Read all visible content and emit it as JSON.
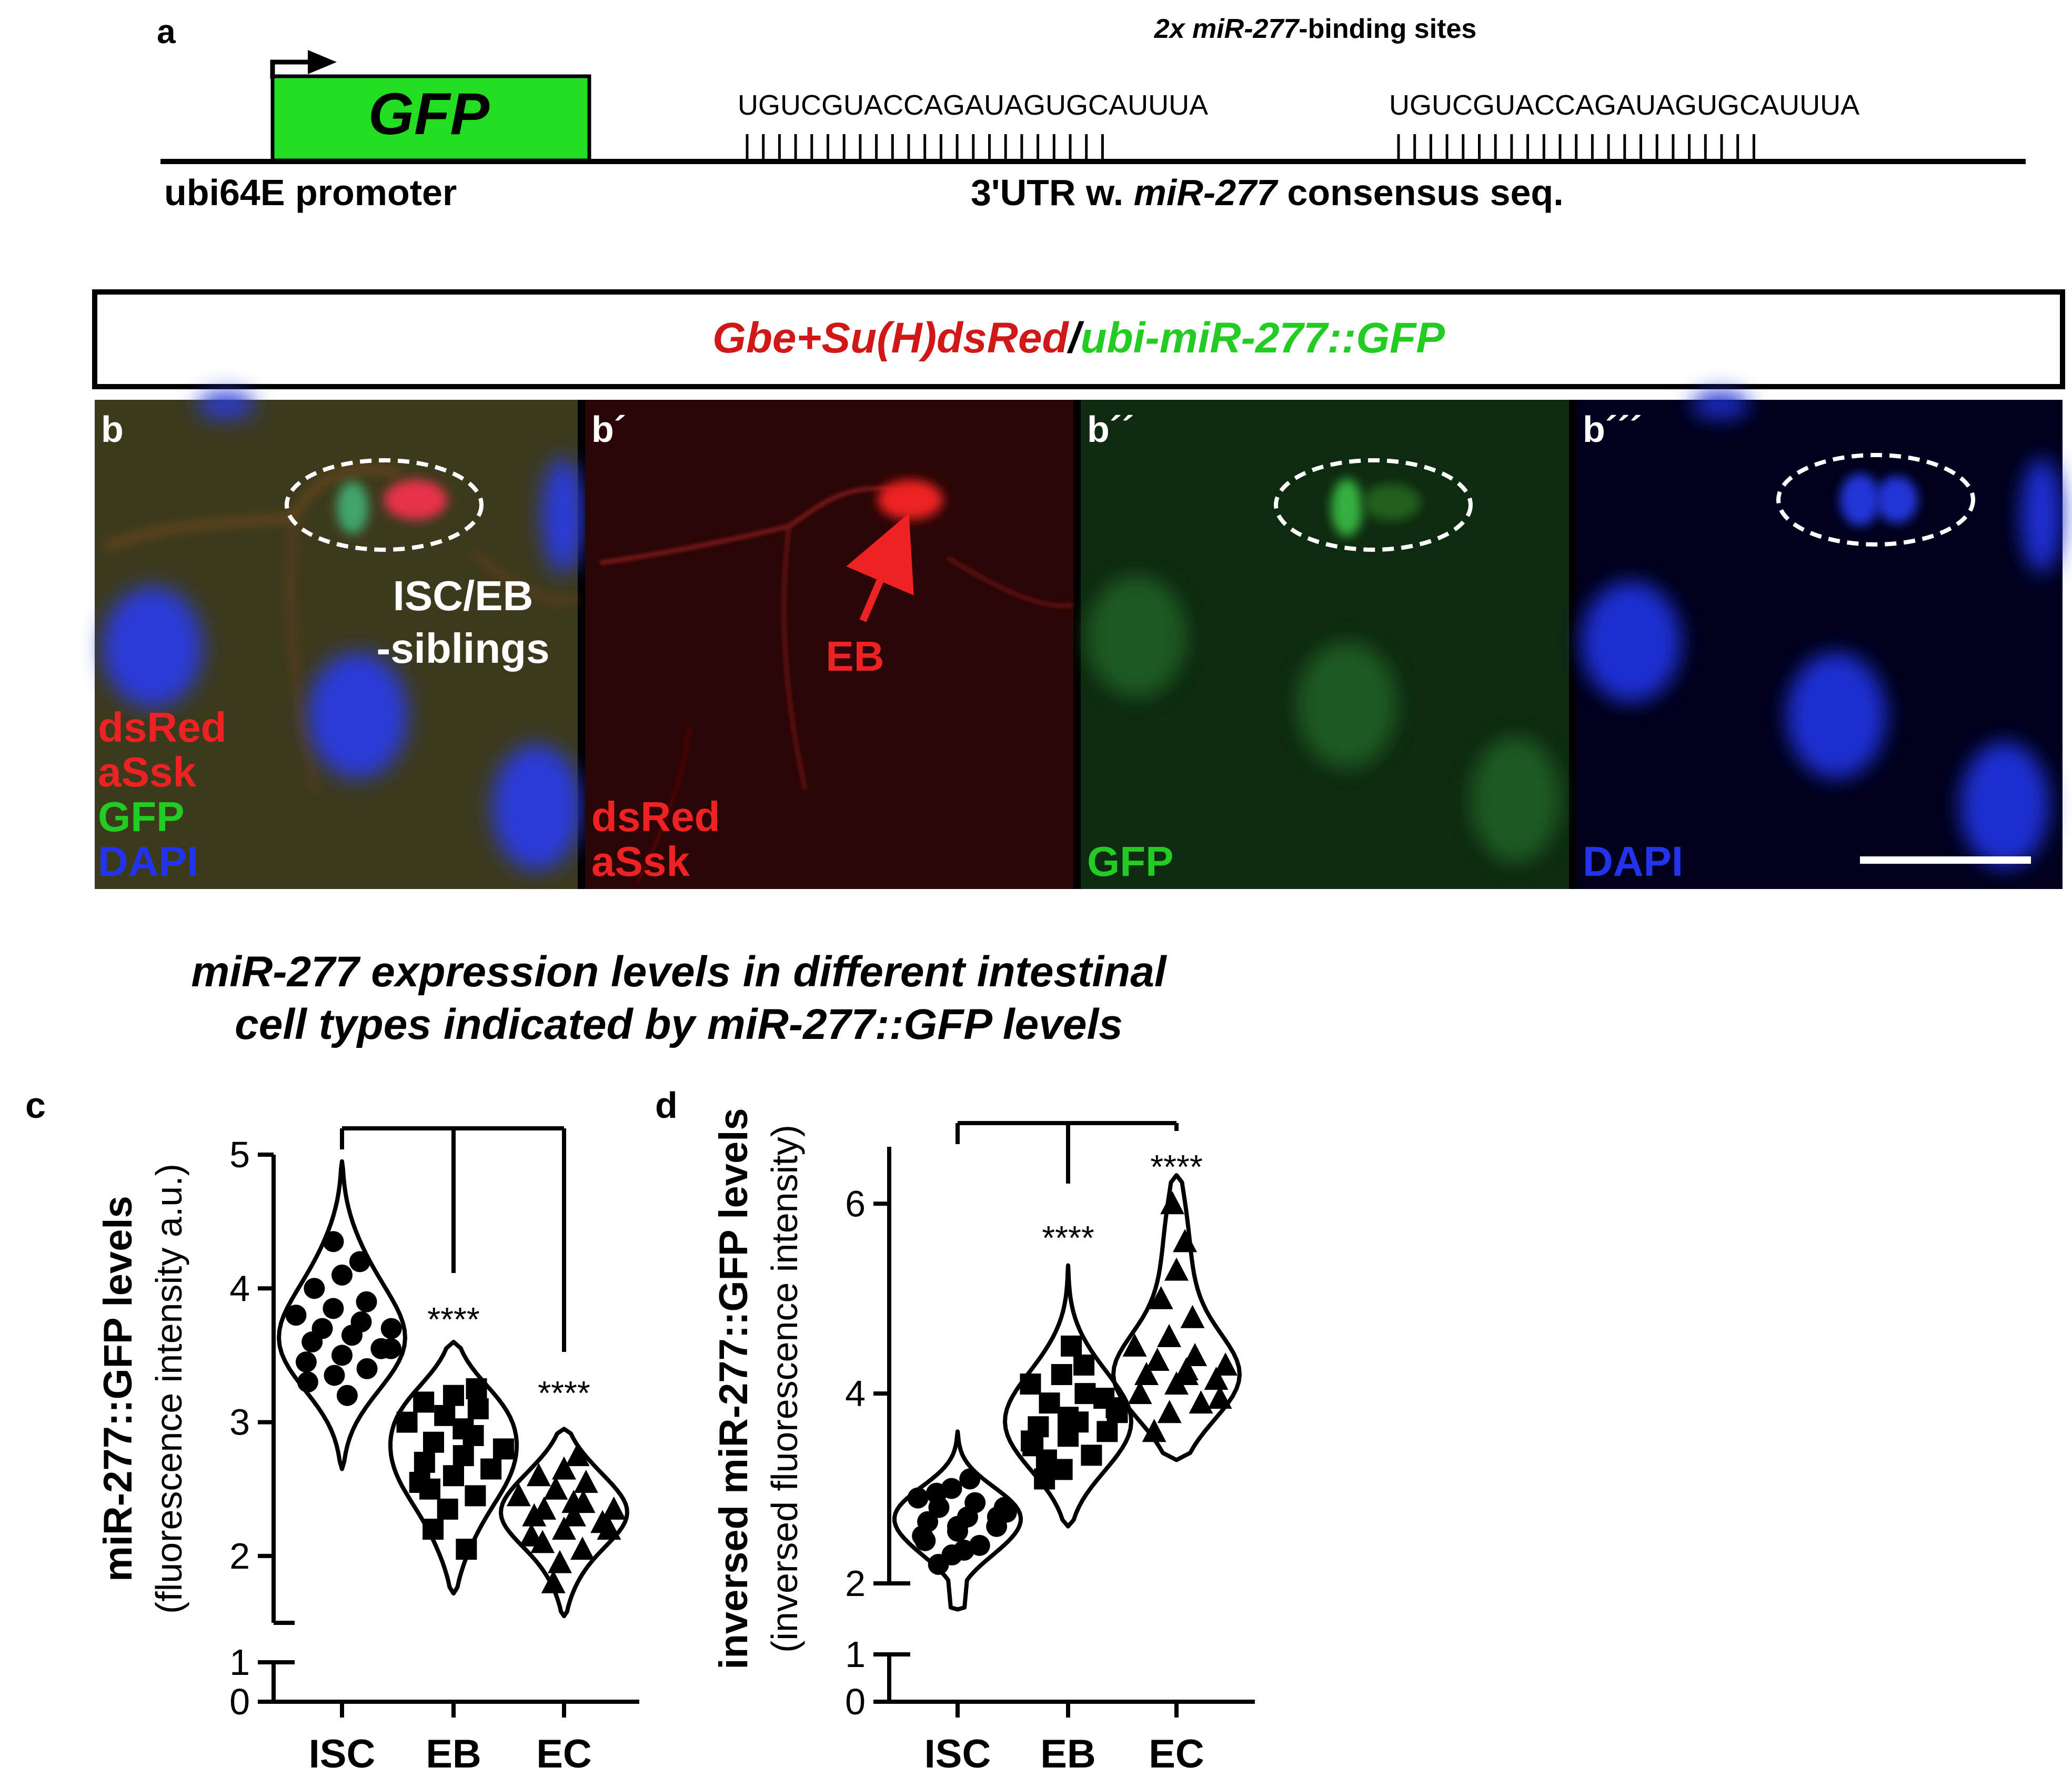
{
  "panel_a": {
    "label": "a",
    "binding_title_italic": "2x miR-277",
    "binding_title_rest": "-binding sites",
    "gene": "GFP",
    "site_seq_1": "UGUCGUACCAGAUAGUGCAUUUA",
    "site_seq_2": "UGUCGUACCAGAUAGUGCAUUUA",
    "promoter_label": "ubi64E promoter",
    "utr_label_pre": "3'UTR w. ",
    "utr_label_italic": "miR-277",
    "utr_label_post": " consensus seq.",
    "gfp_color": "#22dd22"
  },
  "header_box": {
    "red_text": "Gbe+Su(H)dsRed",
    "slash": "/",
    "green_text": "ubi-miR-277::GFP",
    "red_color": "#d01818",
    "green_color": "#22cc22"
  },
  "panel_b": {
    "tiles": [
      {
        "label": "b",
        "legend": [
          "dsRed",
          "aSsk",
          "GFP",
          "DAPI"
        ]
      },
      {
        "label": "b´",
        "legend": [
          "dsRed",
          "aSsk"
        ],
        "arrow_label": "EB"
      },
      {
        "label": "b´´",
        "legend": [
          "GFP"
        ]
      },
      {
        "label": "b´´´",
        "legend": [
          "DAPI"
        ]
      }
    ],
    "siblings_line1": "ISC/EB",
    "siblings_line2": "-siblings",
    "legend_colors": {
      "dsRed": "#ee2222",
      "aSsk": "#ee2222",
      "GFP": "#22cc22",
      "DAPI": "#2233ee"
    }
  },
  "charts_title": {
    "line1": "miR-277 expression levels in different intestinal",
    "line2": "cell types indicated by miR-277::GFP levels"
  },
  "chart_data": [
    {
      "panel": "c",
      "type": "violin",
      "categories": [
        "ISC",
        "EB",
        "EC"
      ],
      "ylabel": "miR-277::GFP levels",
      "ylabel_sub": "(fluorescence intensity a.u.)",
      "y_ticks": [
        0,
        1,
        2,
        3,
        4,
        5
      ],
      "axis_break": [
        1.3,
        1.5
      ],
      "significance": [
        "",
        "****",
        "****"
      ],
      "series": [
        {
          "category": "ISC",
          "marker": "circle",
          "min": 2.65,
          "max": 4.95,
          "values": [
            3.3,
            3.35,
            3.4,
            3.45,
            3.5,
            3.55,
            3.6,
            3.65,
            3.7,
            3.7,
            3.75,
            3.8,
            3.85,
            3.9,
            4.0,
            4.1,
            4.2,
            4.35,
            3.2,
            3.55
          ]
        },
        {
          "category": "EB",
          "marker": "square",
          "min": 1.72,
          "max": 3.6,
          "values": [
            2.2,
            2.35,
            2.45,
            2.55,
            2.6,
            2.65,
            2.7,
            2.75,
            2.8,
            2.85,
            2.9,
            3.0,
            3.05,
            3.1,
            3.15,
            3.2,
            3.25,
            2.5,
            2.95,
            2.05
          ]
        },
        {
          "category": "EC",
          "marker": "triangle",
          "min": 1.55,
          "max": 2.95,
          "values": [
            1.8,
            1.95,
            2.05,
            2.15,
            2.2,
            2.25,
            2.3,
            2.3,
            2.35,
            2.35,
            2.4,
            2.45,
            2.5,
            2.55,
            2.6,
            2.65,
            2.75,
            2.1,
            2.4,
            2.2
          ]
        }
      ]
    },
    {
      "panel": "d",
      "type": "violin",
      "categories": [
        "ISC",
        "EB",
        "EC"
      ],
      "ylabel": "inversed miR-277::GFP levels",
      "ylabel_sub": "(inversed fluorescence intensity)",
      "y_ticks": [
        0,
        1,
        2,
        4,
        6
      ],
      "axis_break": [
        1.55,
        2.05
      ],
      "significance": [
        "",
        "****",
        "****"
      ],
      "series": [
        {
          "category": "ISC",
          "marker": "circle",
          "min": 1.95,
          "max": 3.6,
          "values": [
            2.2,
            2.3,
            2.4,
            2.5,
            2.55,
            2.6,
            2.65,
            2.7,
            2.75,
            2.8,
            2.85,
            2.9,
            3.0,
            3.1,
            2.45,
            2.6,
            2.7,
            2.95,
            2.35,
            2.8
          ]
        },
        {
          "category": "EB",
          "marker": "square",
          "min": 2.6,
          "max": 5.35,
          "values": [
            3.1,
            3.2,
            3.35,
            3.45,
            3.55,
            3.6,
            3.65,
            3.7,
            3.8,
            3.9,
            4.0,
            4.1,
            4.2,
            4.3,
            3.5,
            3.75,
            3.95,
            3.3,
            4.5,
            3.85
          ]
        },
        {
          "category": "EC",
          "marker": "triangle",
          "min": 3.3,
          "max": 6.3,
          "values": [
            3.6,
            3.8,
            3.9,
            4.0,
            4.1,
            4.15,
            4.2,
            4.25,
            4.3,
            4.35,
            4.4,
            4.5,
            4.6,
            4.8,
            5.0,
            5.3,
            5.6,
            6.0,
            4.2,
            3.95
          ]
        }
      ]
    }
  ]
}
